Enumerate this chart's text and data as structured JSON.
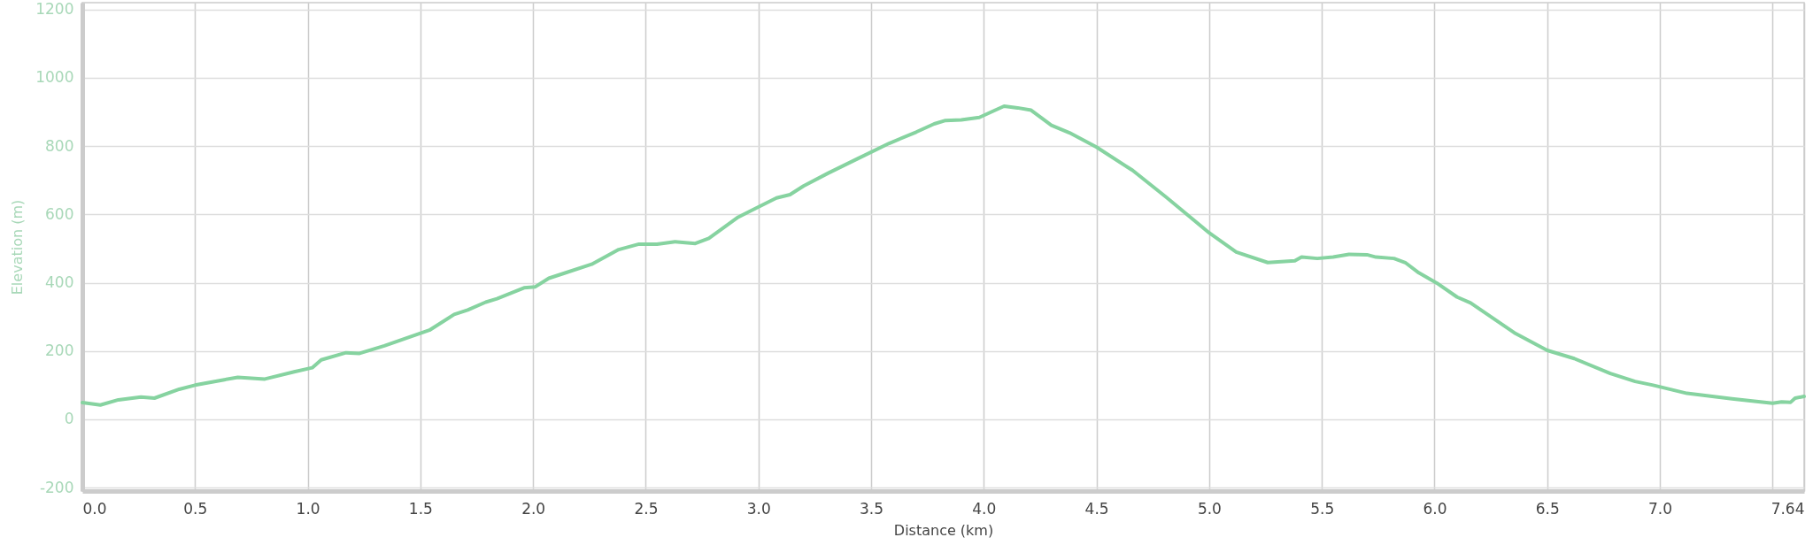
{
  "chart_data": {
    "type": "line",
    "xlabel": "Distance (km)",
    "ylabel": "Elevation (m)",
    "xlim": [
      0,
      7.64
    ],
    "ylim": [
      -210,
      1220
    ],
    "xticks": [
      {
        "value": 0,
        "label": "0.0"
      },
      {
        "value": 0.5,
        "label": "0.5"
      },
      {
        "value": 1,
        "label": "1.0"
      },
      {
        "value": 1.5,
        "label": "1.5"
      },
      {
        "value": 2,
        "label": "2.0"
      },
      {
        "value": 2.5,
        "label": "2.5"
      },
      {
        "value": 3,
        "label": "3.0"
      },
      {
        "value": 3.5,
        "label": "3.5"
      },
      {
        "value": 4,
        "label": "4.0"
      },
      {
        "value": 4.5,
        "label": "4.5"
      },
      {
        "value": 5,
        "label": "5.0"
      },
      {
        "value": 5.5,
        "label": "5.5"
      },
      {
        "value": 6,
        "label": "6.0"
      },
      {
        "value": 6.5,
        "label": "6.5"
      },
      {
        "value": 7,
        "label": "7.0"
      },
      {
        "value": 7.5,
        "label": null
      },
      7.64
    ],
    "yticks": [
      -200,
      0,
      200,
      400,
      600,
      800,
      1000,
      1200
    ],
    "grid": true,
    "series": [
      {
        "color": "#86d3a0",
        "x": [
          0,
          0.08,
          0.16,
          0.26,
          0.32,
          0.43,
          0.5,
          0.63,
          0.69,
          0.81,
          0.94,
          1.02,
          1.06,
          1.17,
          1.23,
          1.34,
          1.43,
          1.54,
          1.65,
          1.71,
          1.79,
          1.84,
          1.96,
          2.01,
          2.07,
          2.13,
          2.26,
          2.38,
          2.47,
          2.55,
          2.63,
          2.72,
          2.78,
          2.91,
          2.97,
          3.08,
          3.14,
          3.2,
          3.31,
          3.44,
          3.58,
          3.7,
          3.78,
          3.83,
          3.9,
          3.98,
          4.04,
          4.09,
          4.15,
          4.21,
          4.3,
          4.38,
          4.5,
          4.66,
          4.81,
          5,
          5.12,
          5.26,
          5.38,
          5.41,
          5.48,
          5.55,
          5.62,
          5.7,
          5.74,
          5.82,
          5.87,
          5.93,
          6.01,
          6.1,
          6.16,
          6.36,
          6.5,
          6.62,
          6.78,
          6.89,
          6.97,
          7.12,
          7.32,
          7.5,
          7.54,
          7.58,
          7.6,
          7.64
        ],
        "values": [
          49,
          42,
          57,
          65,
          62,
          88,
          100,
          116,
          123,
          118,
          139,
          151,
          174,
          195,
          193,
          215,
          236,
          261,
          307,
          320,
          343,
          353,
          385,
          388,
          413,
          426,
          454,
          497,
          513,
          513,
          520,
          515,
          530,
          592,
          612,
          648,
          658,
          683,
          721,
          763,
          808,
          841,
          865,
          875,
          877,
          884,
          902,
          917,
          912,
          905,
          861,
          839,
          797,
          729,
          650,
          546,
          490,
          459,
          464,
          475,
          471,
          475,
          483,
          482,
          475,
          471,
          459,
          429,
          399,
          358,
          341,
          251,
          202,
          178,
          134,
          111,
          100,
          76,
          60,
          47,
          51,
          50,
          62,
          67
        ]
      }
    ]
  }
}
